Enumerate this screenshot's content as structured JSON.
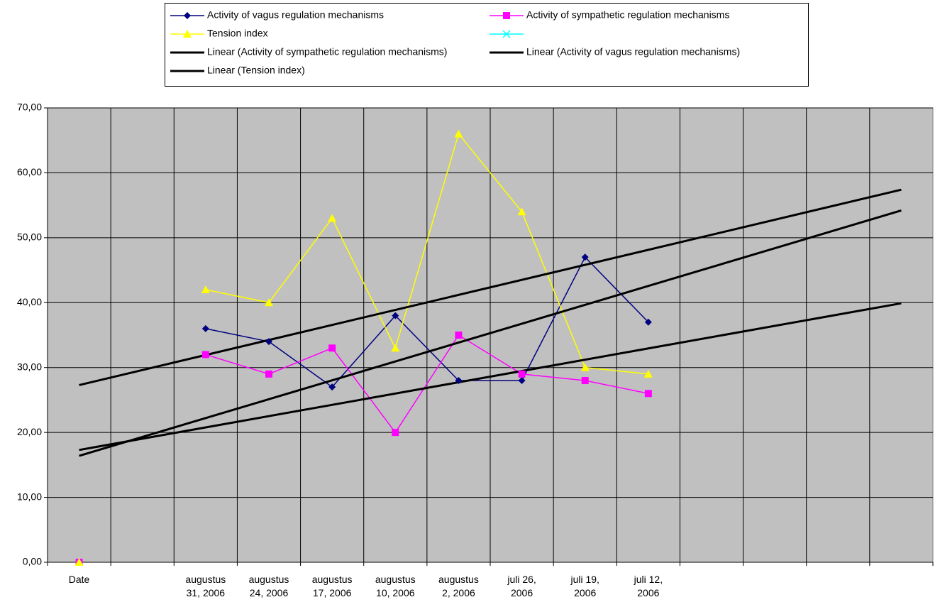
{
  "chart_data": {
    "type": "line",
    "categories": [
      "Date",
      null,
      "augustus 31, 2006",
      "augustus 24, 2006",
      "augustus 17, 2006",
      "augustus 10, 2006",
      "augustus 2, 2006",
      "juli 26, 2006",
      "juli 19, 2006",
      "juli 12, 2006",
      null,
      null,
      null,
      null
    ],
    "series": [
      {
        "name": "Activity of vagus regulation mechanisms",
        "color": "#000080",
        "marker": "diamond",
        "values": [
          0,
          null,
          36,
          34,
          27,
          38,
          28,
          28,
          47,
          37,
          null,
          null,
          null,
          null
        ]
      },
      {
        "name": "Activity of sympathetic regulation mechanisms",
        "color": "#ff00ff",
        "marker": "square",
        "values": [
          0,
          null,
          32,
          29,
          33,
          20,
          35,
          29,
          28,
          26,
          null,
          null,
          null,
          null
        ]
      },
      {
        "name": "Tension index",
        "color": "#ffff00",
        "marker": "triangle",
        "values": [
          0,
          null,
          42,
          40,
          53,
          33,
          66,
          54,
          30,
          29,
          null,
          null,
          null,
          null
        ]
      },
      {
        "color": "#00ffff",
        "marker": "x",
        "values": [
          null,
          null,
          null,
          null,
          null,
          null,
          null,
          null,
          null,
          null,
          null,
          null,
          null,
          null
        ]
      }
    ],
    "trendlines": [
      {
        "name": "Linear (Activity of sympathetic regulation mechanisms)",
        "color": "#000000",
        "values": [
          17.3,
          39.9
        ]
      },
      {
        "name": "Linear (Activity of vagus regulation mechanisms)",
        "color": "#000000",
        "values": [
          16.4,
          54.2
        ]
      },
      {
        "name": "Linear (Tension index)",
        "color": "#000000",
        "values": [
          27.3,
          57.4
        ]
      }
    ],
    "ylim": [
      0,
      70
    ],
    "yticks": [
      {
        "value": 0,
        "label": "0,00"
      },
      {
        "value": 10,
        "label": "10,00"
      },
      {
        "value": 20,
        "label": "20,00"
      },
      {
        "value": 30,
        "label": "30,00"
      },
      {
        "value": 40,
        "label": "40,00"
      },
      {
        "value": 50,
        "label": "50,00"
      },
      {
        "value": 60,
        "label": "60,00"
      },
      {
        "value": 70,
        "label": "70,00"
      }
    ],
    "grid": true,
    "legend": "top",
    "plot_background": "#c0c0c0"
  }
}
